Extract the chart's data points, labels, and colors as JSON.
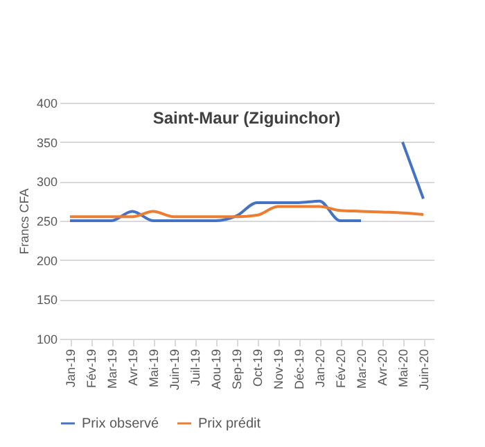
{
  "chart_data": {
    "type": "line",
    "title": "Saint-Maur (Ziguinchor)",
    "ylabel": "Francs CFA",
    "categories": [
      "Jan-19",
      "Fév-19",
      "Mar-19",
      "Avr-19",
      "Mai-19",
      "Juin-19",
      "Juil-19",
      "Aou-19",
      "Sep-19",
      "Oct-19",
      "Nov-19",
      "Déc-19",
      "Jan-20",
      "Fév-20",
      "Mar-20",
      "Avr-20",
      "Mai-20",
      "Juin-20"
    ],
    "series": [
      {
        "name": "Prix observé",
        "color": "#4472c4",
        "values": [
          250,
          250,
          250,
          262,
          250,
          250,
          250,
          250,
          256,
          273,
          273,
          273,
          275,
          250,
          250,
          null,
          350,
          278
        ]
      },
      {
        "name": "Prix prédit",
        "color": "#ed7d31",
        "values": [
          255,
          255,
          255,
          255,
          262,
          255,
          255,
          255,
          255,
          257,
          268,
          268,
          268,
          263,
          262,
          261,
          260,
          258
        ]
      }
    ],
    "ylim": [
      100,
      400
    ],
    "yticks": [
      100,
      150,
      200,
      250,
      300,
      350,
      400
    ],
    "grid": "y",
    "legend": "bottom",
    "marker": "none",
    "line_style": "solid"
  }
}
